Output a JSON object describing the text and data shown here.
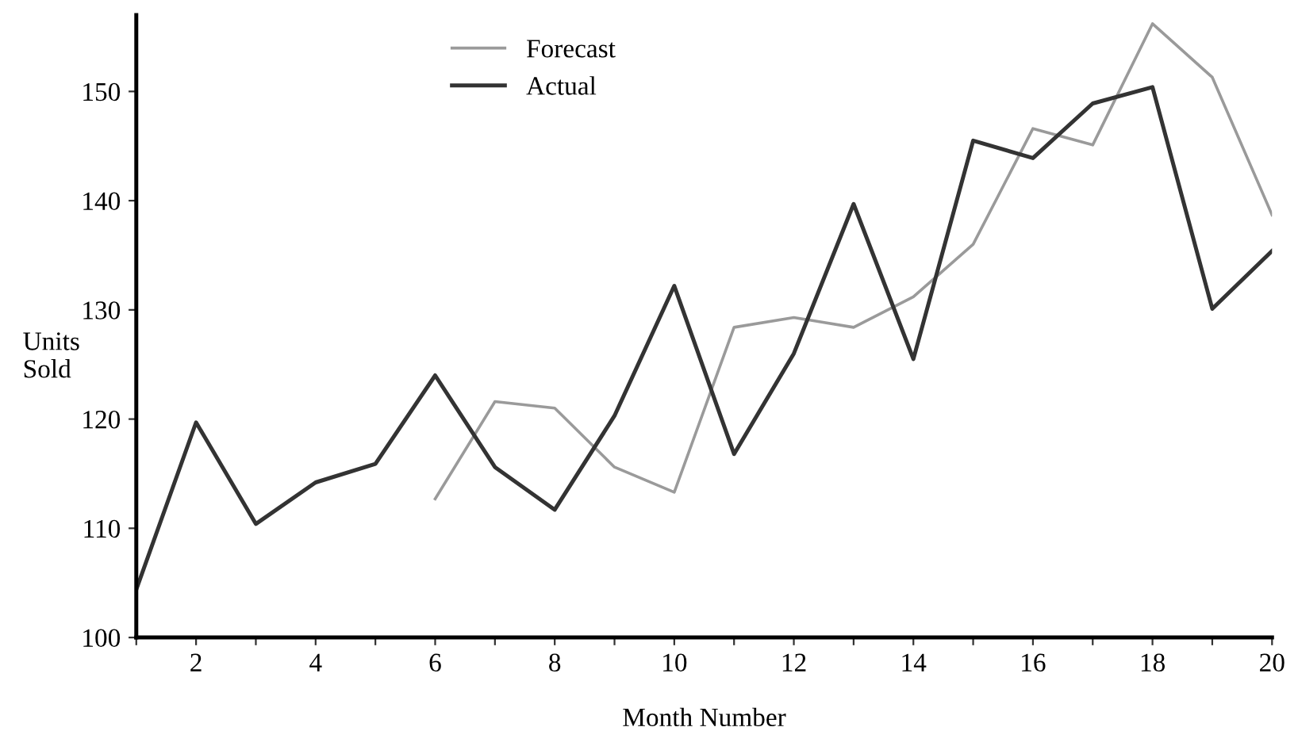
{
  "chart_data": {
    "type": "line",
    "xlabel": "Month Number",
    "ylabel": "Units\nSold",
    "x": [
      1,
      2,
      3,
      4,
      5,
      6,
      7,
      8,
      9,
      10,
      11,
      12,
      13,
      14,
      15,
      16,
      17,
      18,
      19,
      20
    ],
    "series": [
      {
        "name": "Forecast",
        "color": "#9a9a9a",
        "values": [
          null,
          null,
          null,
          null,
          null,
          112.7,
          121.6,
          121.0,
          115.6,
          113.3,
          128.4,
          129.3,
          128.4,
          131.2,
          136.0,
          146.6,
          145.1,
          156.2,
          151.3,
          138.7
        ]
      },
      {
        "name": "Actual",
        "color": "#333333",
        "values": [
          104.4,
          119.7,
          110.4,
          114.2,
          115.9,
          124.0,
          115.6,
          111.7,
          120.3,
          132.2,
          116.8,
          126.0,
          139.7,
          125.5,
          145.5,
          143.9,
          148.9,
          150.4,
          130.1,
          135.4
        ]
      }
    ],
    "xlim": [
      1,
      20
    ],
    "ylim": [
      100,
      157
    ],
    "xticks": [
      {
        "value": 1,
        "label": null
      },
      2,
      {
        "value": 3,
        "label": null
      },
      4,
      {
        "value": 5,
        "label": null
      },
      6,
      {
        "value": 7,
        "label": null
      },
      8,
      {
        "value": 9,
        "label": null
      },
      10,
      {
        "value": 11,
        "label": null
      },
      12,
      {
        "value": 13,
        "label": null
      },
      14,
      {
        "value": 15,
        "label": null
      },
      16,
      {
        "value": 17,
        "label": null
      },
      18,
      {
        "value": 19,
        "label": null
      },
      20
    ],
    "yticks": [
      100,
      110,
      120,
      130,
      140,
      150
    ],
    "grid": false,
    "legend": "top",
    "marker": "none",
    "line_style": "solid"
  }
}
